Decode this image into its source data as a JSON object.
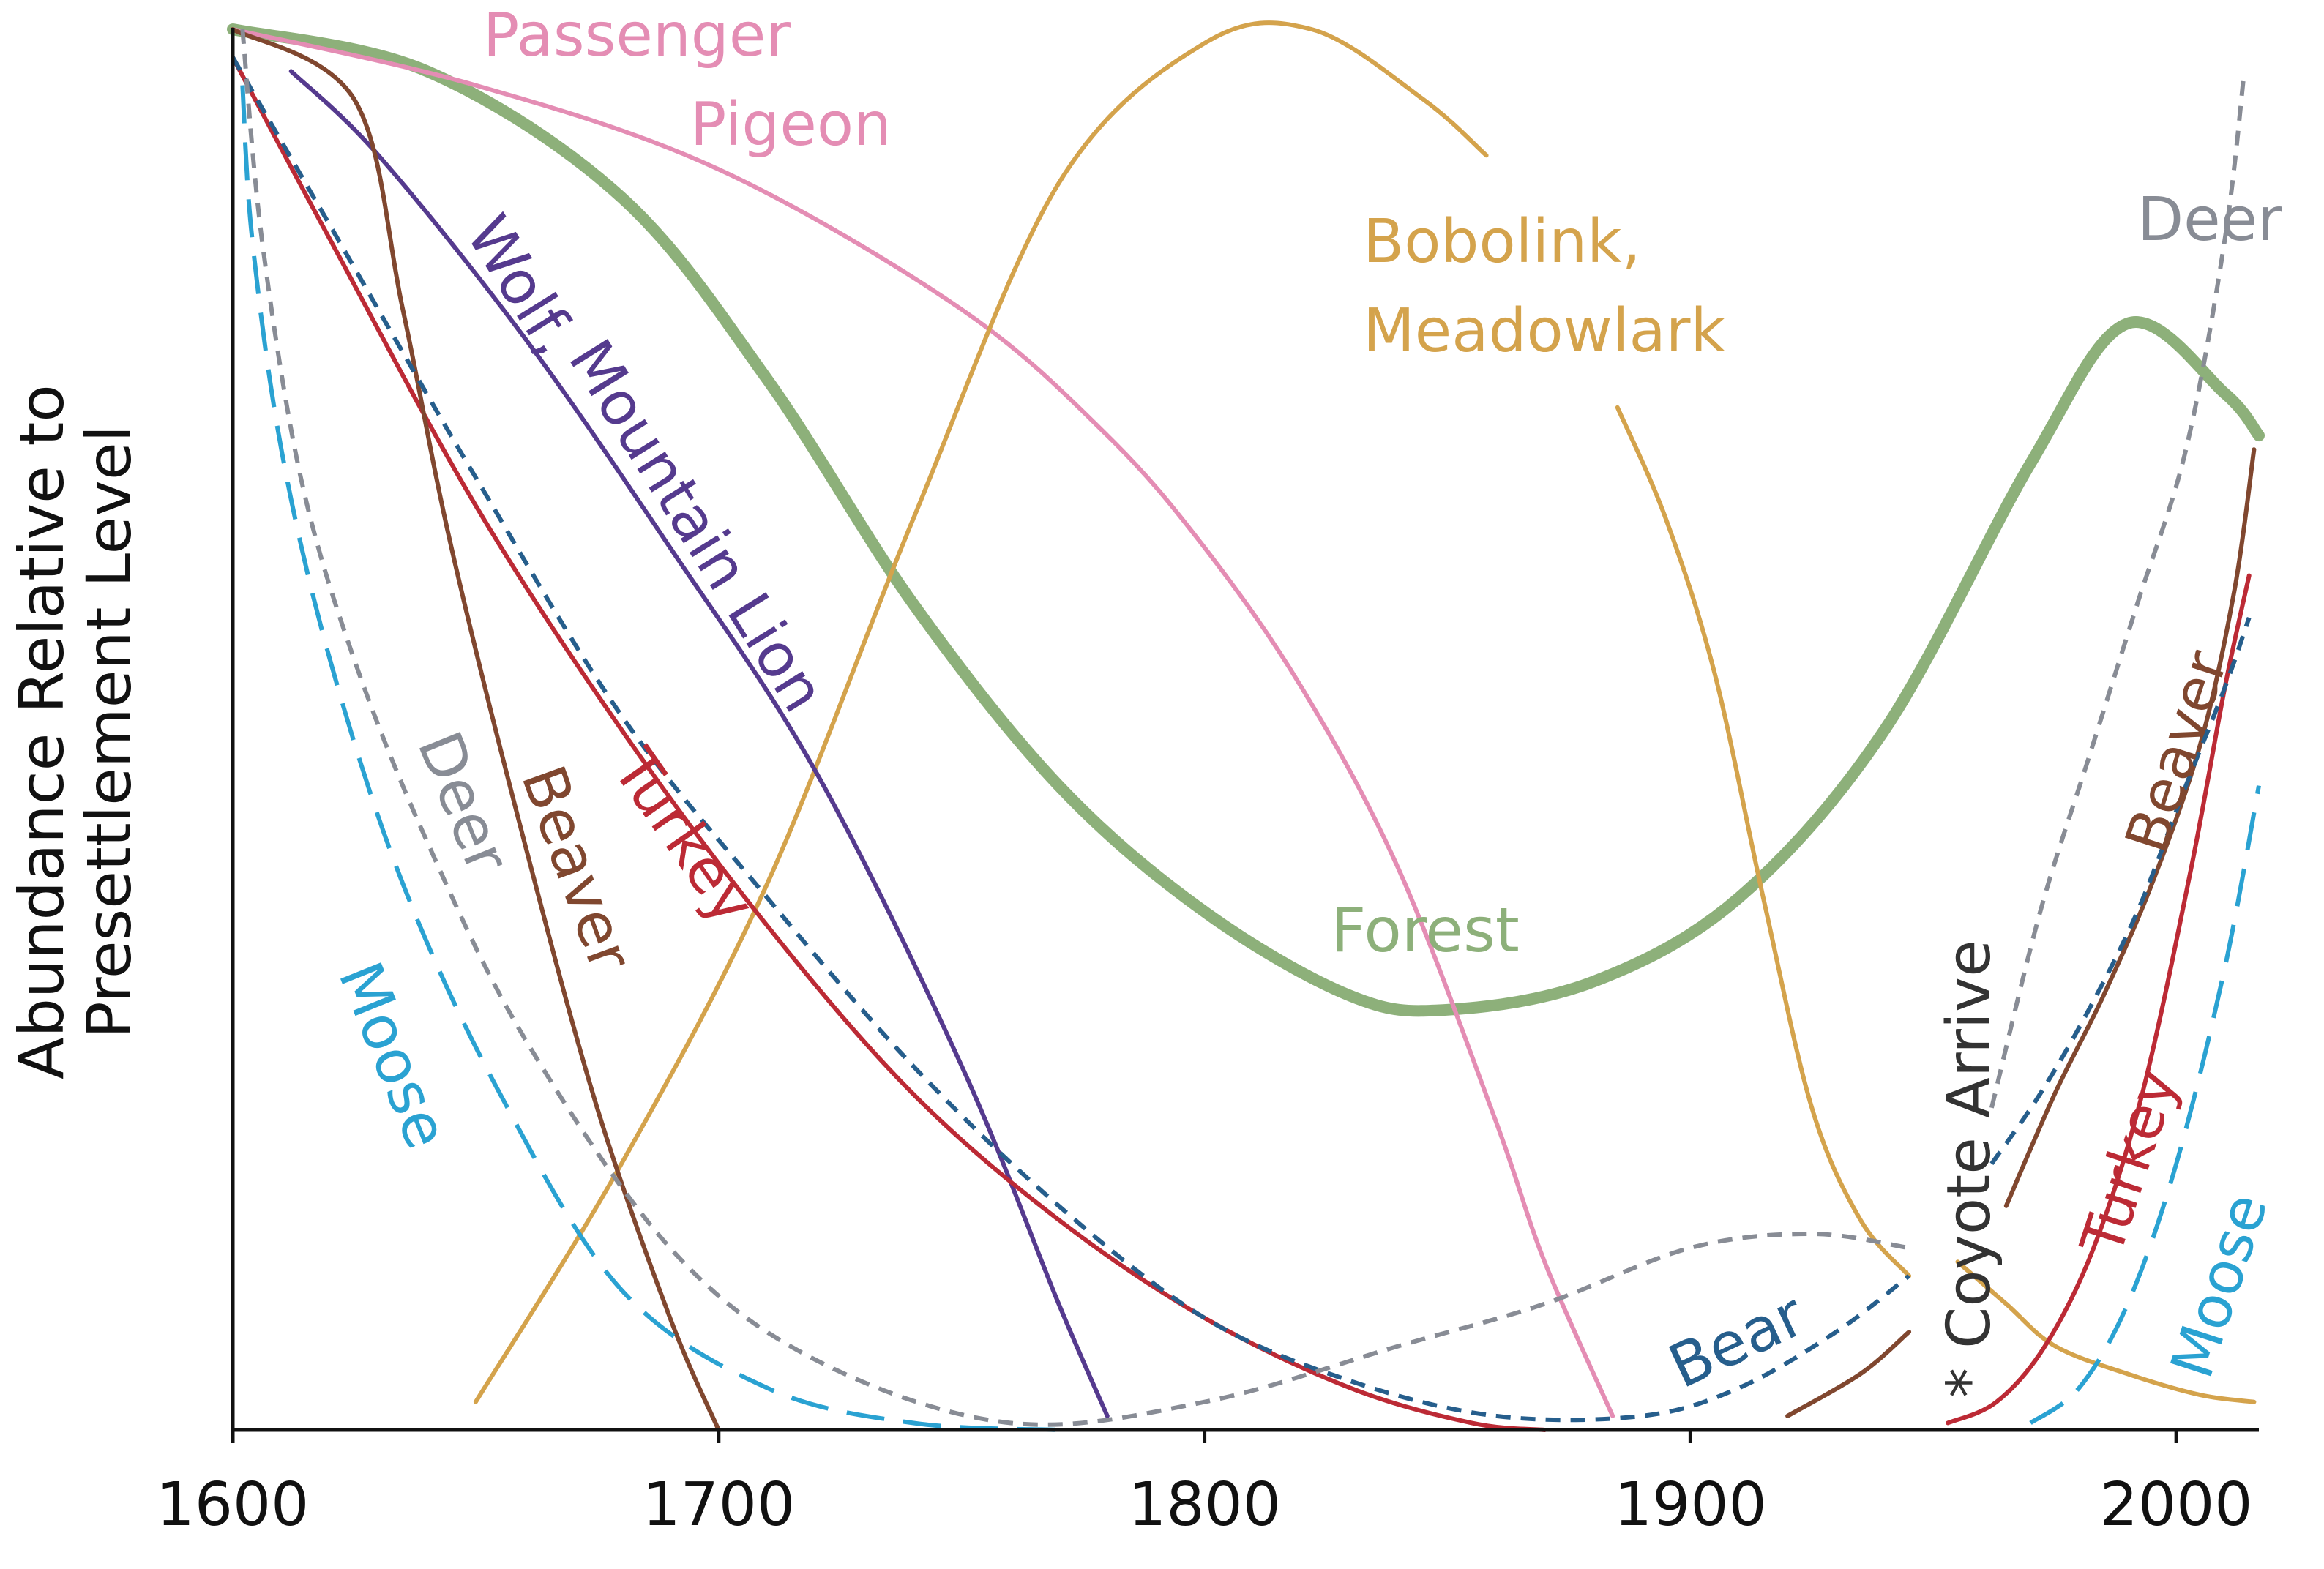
{
  "chart_data": {
    "type": "line",
    "xlabel": "",
    "ylabel": "Abundance Relative to Presettlement Level",
    "ylabel_lines": [
      "Abundance Relative to",
      "Presettlement Level"
    ],
    "xlim": [
      1600,
      2017
    ],
    "ylim": [
      0,
      1
    ],
    "x_ticks": [
      1600,
      1700,
      1800,
      1900,
      2000
    ],
    "y_ticks": [],
    "grid": false,
    "legend": "none (series labelled directly on the lines)",
    "series": [
      {
        "name": "Passenger Pigeon",
        "label_lines": [
          "Passenger",
          "Pigeon"
        ],
        "color": "#e48db4",
        "style": "solid",
        "x": [
          1600,
          1650,
          1700,
          1750,
          1780,
          1800,
          1820,
          1840,
          1860,
          1870,
          1884
        ],
        "y": [
          1.0,
          0.96,
          0.9,
          0.8,
          0.71,
          0.63,
          0.53,
          0.4,
          0.22,
          0.12,
          0.01
        ]
      },
      {
        "name": "Forest",
        "label_lines": [
          "Forest"
        ],
        "color": "#8db07a",
        "style": "thick",
        "x": [
          1600,
          1640,
          1680,
          1710,
          1740,
          1770,
          1800,
          1830,
          1850,
          1880,
          1910,
          1940,
          1970,
          1990,
          2010,
          2017
        ],
        "y": [
          1.0,
          0.97,
          0.88,
          0.75,
          0.59,
          0.46,
          0.37,
          0.31,
          0.3,
          0.32,
          0.38,
          0.5,
          0.69,
          0.79,
          0.74,
          0.71
        ]
      },
      {
        "name": "Bobolink, Meadowlark",
        "label_lines": [
          "Bobolink,",
          "Meadowlark"
        ],
        "color": "#d4a34c",
        "style": "solid",
        "x": [
          1650,
          1680,
          1710,
          1740,
          1770,
          1800,
          1822,
          1845,
          1858
        ],
        "y": [
          0.02,
          0.19,
          0.39,
          0.65,
          0.89,
          0.99,
          1.0,
          0.95,
          0.91
        ]
      },
      {
        "name": "Bobolink, Meadowlark (decline)",
        "color": "#d4a34c",
        "style": "solid",
        "x": [
          1885,
          1895,
          1905,
          1915,
          1925,
          1935,
          1945
        ],
        "y": [
          0.73,
          0.65,
          0.54,
          0.38,
          0.23,
          0.15,
          0.11
        ]
      },
      {
        "name": "Bobolink, Meadowlark (recent)",
        "color": "#d4a34c",
        "style": "solid",
        "x": [
          1955,
          1965,
          1975,
          1990,
          2005,
          2016
        ],
        "y": [
          0.12,
          0.09,
          0.06,
          0.04,
          0.025,
          0.02
        ]
      },
      {
        "name": "Wolf, Mountain Lion",
        "label_lines": [
          "Wolf,",
          "Mountain Lion"
        ],
        "color": "#553a8e",
        "style": "solid",
        "x": [
          1612,
          1630,
          1660,
          1690,
          1720,
          1750,
          1770,
          1780
        ],
        "y": [
          0.97,
          0.91,
          0.78,
          0.63,
          0.47,
          0.26,
          0.09,
          0.01
        ]
      },
      {
        "name": "Turkey",
        "label_lines": [
          "Turkey"
        ],
        "color": "#bc2a35",
        "style": "solid",
        "x": [
          1600,
          1620,
          1650,
          1680,
          1710,
          1740,
          1770,
          1800,
          1830,
          1855,
          1870
        ],
        "y": [
          0.98,
          0.85,
          0.66,
          0.5,
          0.36,
          0.24,
          0.15,
          0.08,
          0.03,
          0.005,
          0.0
        ]
      },
      {
        "name": "Turkey (recovery)",
        "color": "#bc2a35",
        "style": "solid",
        "x": [
          1953,
          1963,
          1973,
          1983,
          1993,
          2003,
          2010,
          2015
        ],
        "y": [
          0.005,
          0.02,
          0.06,
          0.13,
          0.24,
          0.4,
          0.53,
          0.61
        ]
      },
      {
        "name": "Beaver",
        "label_lines": [
          "Beaver"
        ],
        "color": "#80472f",
        "style": "solid",
        "x": [
          1600,
          1625,
          1635,
          1645,
          1660,
          1675,
          1690,
          1700
        ],
        "y": [
          1.0,
          0.95,
          0.8,
          0.63,
          0.42,
          0.23,
          0.08,
          0.0
        ]
      },
      {
        "name": "Beaver (recovery)",
        "color": "#80472f",
        "style": "solid",
        "x": [
          1920,
          1935,
          1945
        ],
        "y": [
          0.01,
          0.04,
          0.07
        ]
      },
      {
        "name": "Beaver (recent)",
        "color": "#80472f",
        "style": "solid",
        "x": [
          1965,
          1975,
          1985,
          1995,
          2005,
          2012,
          2016
        ],
        "y": [
          0.16,
          0.24,
          0.31,
          0.39,
          0.49,
          0.6,
          0.7
        ]
      },
      {
        "name": "Bear",
        "label_lines": [
          "Bear"
        ],
        "color": "#265e8c",
        "style": "dashed",
        "x": [
          1600,
          1620,
          1650,
          1680,
          1710,
          1740,
          1770,
          1800,
          1830,
          1860,
          1890,
          1910,
          1930,
          1945
        ],
        "y": [
          0.98,
          0.86,
          0.68,
          0.51,
          0.38,
          0.26,
          0.16,
          0.08,
          0.035,
          0.01,
          0.01,
          0.03,
          0.07,
          0.11
        ]
      },
      {
        "name": "Bear (recovery)",
        "color": "#265e8c",
        "style": "dashed",
        "x": [
          1962,
          1972,
          1982,
          1992,
          2002,
          2010,
          2015
        ],
        "y": [
          0.19,
          0.24,
          0.3,
          0.37,
          0.46,
          0.53,
          0.58
        ]
      },
      {
        "name": "Deer",
        "label_lines": [
          "Deer"
        ],
        "color": "#888c95",
        "style": "dashed",
        "x": [
          1602,
          1606,
          1614,
          1625,
          1640,
          1660,
          1690,
          1720,
          1760,
          1800,
          1840,
          1870,
          1900,
          1925,
          1945
        ],
        "y": [
          1.0,
          0.85,
          0.68,
          0.55,
          0.42,
          0.28,
          0.13,
          0.05,
          0.005,
          0.02,
          0.06,
          0.09,
          0.13,
          0.14,
          0.13
        ]
      },
      {
        "name": "Deer (recovery)",
        "label_lines": [
          "Deer"
        ],
        "color": "#888c95",
        "style": "dashed",
        "x": [
          1962,
          1972,
          1982,
          1992,
          2002,
          2010,
          2014
        ],
        "y": [
          0.23,
          0.37,
          0.48,
          0.59,
          0.7,
          0.85,
          0.97
        ]
      },
      {
        "name": "Moose",
        "label_lines": [
          "Moose"
        ],
        "color": "#2aa2d2",
        "style": "longdash",
        "x": [
          1602,
          1604,
          1610,
          1620,
          1635,
          1655,
          1680,
          1710,
          1740,
          1770
        ],
        "y": [
          0.96,
          0.85,
          0.7,
          0.55,
          0.39,
          0.24,
          0.1,
          0.03,
          0.005,
          0.0
        ]
      },
      {
        "name": "Moose (recovery)",
        "color": "#2aa2d2",
        "style": "longdash",
        "x": [
          1970,
          1980,
          1990,
          2000,
          2010,
          2017
        ],
        "y": [
          0.005,
          0.03,
          0.09,
          0.19,
          0.33,
          0.46
        ]
      }
    ],
    "annotations": [
      "* Coyote Arrive"
    ],
    "labels": {
      "passenger_pigeon": [
        "Passenger",
        "Pigeon"
      ],
      "bobolink": [
        "Bobolink,",
        "Meadowlark"
      ],
      "deer_right": "Deer",
      "wolf": [
        "Wolf,",
        "Mountain Lion"
      ],
      "deer_left": "Deer",
      "moose_left": "Moose",
      "beaver_left": "Beaver",
      "turkey_left": "Turkey",
      "forest": "Forest",
      "bear": "Bear",
      "coyote": "* Coyote Arrive",
      "beaver_right": "Beaver",
      "turkey_right": "Turkey",
      "moose_right": "Moose"
    }
  }
}
